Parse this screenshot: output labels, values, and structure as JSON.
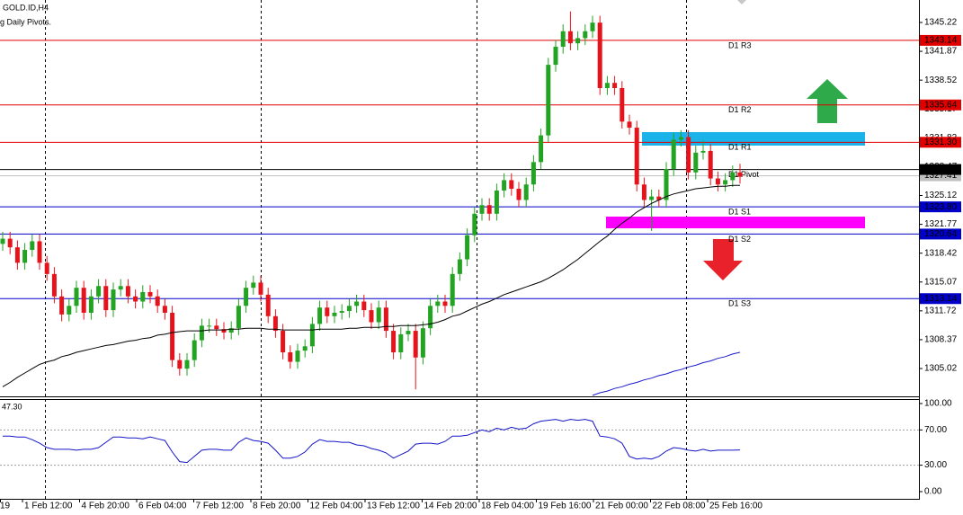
{
  "chart_data": [
    {
      "type": "candlestick",
      "title": "GOLD.ID,H4",
      "subtitle": "g Daily Pivots.",
      "open": [
        1319.5,
        1320.1,
        1319.1,
        1317.3,
        1318.8,
        1319.8,
        1317.3,
        1316.0,
        1313.4,
        1311.3,
        1312.3,
        1314.4,
        1311.5,
        1313.4,
        1314.6,
        1311.8,
        1314.2,
        1314.6,
        1313.4,
        1312.8,
        1313.9,
        1313.4,
        1312.3,
        1311.5,
        1306.0,
        1305.0,
        1306.0,
        1308.3,
        1310.0,
        1310.0,
        1309.6,
        1309.2,
        1309.7,
        1312.3,
        1314.4,
        1315.0,
        1313.6,
        1311.1,
        1309.4,
        1306.9,
        1305.8,
        1307.1,
        1307.6,
        1310.2,
        1312.1,
        1311.1,
        1311.5,
        1311.7,
        1312.3,
        1312.8,
        1311.8,
        1310.4,
        1312.1,
        1309.4,
        1306.9,
        1309.0,
        1309.4,
        1306.3,
        1309.7,
        1312.3,
        1312.8,
        1312.3,
        1316.0,
        1317.7,
        1320.5,
        1323.0,
        1324.0,
        1323.0,
        1325.7,
        1326.9,
        1325.9,
        1324.6,
        1326.4,
        1329.0,
        1332.1,
        1340.3,
        1342.4,
        1344.2,
        1342.8,
        1343.4,
        1344.2,
        1345.2,
        1337.6,
        1338.2,
        1337.6,
        1333.7,
        1333.0,
        1326.4,
        1324.6,
        1325.0,
        1324.6,
        1328.2,
        1331.6,
        1331.9,
        1327.8,
        1330.1,
        1330.3,
        1327.1,
        1326.4,
        1326.9,
        1327.8
      ],
      "high": [
        1320.9,
        1320.9,
        1319.9,
        1319.6,
        1320.6,
        1320.6,
        1318.1,
        1316.8,
        1314.2,
        1313.1,
        1315.2,
        1315.2,
        1314.2,
        1315.4,
        1315.4,
        1315.0,
        1315.4,
        1315.4,
        1314.2,
        1314.7,
        1314.7,
        1314.2,
        1313.1,
        1312.3,
        1306.8,
        1306.8,
        1309.1,
        1310.8,
        1310.8,
        1310.8,
        1310.4,
        1310.5,
        1313.1,
        1315.2,
        1315.8,
        1315.8,
        1314.4,
        1311.9,
        1310.2,
        1307.7,
        1307.9,
        1308.4,
        1311.0,
        1312.9,
        1312.9,
        1312.3,
        1312.5,
        1313.1,
        1313.6,
        1313.6,
        1312.6,
        1312.9,
        1312.9,
        1310.2,
        1309.8,
        1310.2,
        1310.2,
        1310.5,
        1313.1,
        1313.6,
        1313.6,
        1316.8,
        1318.5,
        1321.3,
        1323.8,
        1324.8,
        1324.8,
        1326.5,
        1327.7,
        1327.7,
        1326.7,
        1327.2,
        1329.8,
        1332.9,
        1341.1,
        1343.2,
        1345.0,
        1346.5,
        1344.2,
        1345.0,
        1346.0,
        1346.0,
        1339.0,
        1339.0,
        1338.4,
        1334.5,
        1333.8,
        1327.2,
        1325.8,
        1325.8,
        1329.0,
        1332.4,
        1332.7,
        1332.7,
        1330.9,
        1331.5,
        1331.1,
        1327.9,
        1327.7,
        1328.6,
        1328.8
      ],
      "low": [
        1318.7,
        1318.3,
        1316.5,
        1316.5,
        1318.0,
        1316.5,
        1315.2,
        1312.6,
        1310.5,
        1310.5,
        1311.5,
        1310.7,
        1310.7,
        1312.6,
        1311.0,
        1311.0,
        1313.4,
        1312.6,
        1312.0,
        1312.0,
        1312.6,
        1311.5,
        1310.7,
        1305.2,
        1304.2,
        1304.2,
        1305.2,
        1307.5,
        1309.2,
        1308.8,
        1308.4,
        1308.4,
        1308.9,
        1311.5,
        1313.6,
        1312.8,
        1310.3,
        1308.6,
        1306.1,
        1305.0,
        1305.0,
        1306.3,
        1306.8,
        1309.4,
        1310.3,
        1310.3,
        1310.7,
        1310.9,
        1311.5,
        1311.0,
        1309.6,
        1309.6,
        1308.6,
        1306.1,
        1306.1,
        1308.2,
        1302.6,
        1305.5,
        1308.9,
        1311.5,
        1311.5,
        1311.5,
        1315.2,
        1316.9,
        1319.7,
        1322.2,
        1322.2,
        1322.2,
        1324.9,
        1325.1,
        1323.8,
        1323.8,
        1325.6,
        1328.2,
        1331.3,
        1339.5,
        1341.6,
        1342.0,
        1342.0,
        1342.6,
        1343.4,
        1336.8,
        1336.8,
        1336.8,
        1332.9,
        1332.2,
        1325.6,
        1323.8,
        1321.0,
        1323.8,
        1323.8,
        1327.4,
        1330.8,
        1327.0,
        1327.0,
        1329.3,
        1326.3,
        1325.6,
        1325.6,
        1326.1,
        1326.5
      ],
      "close": [
        1320.1,
        1319.1,
        1317.3,
        1318.8,
        1319.8,
        1317.3,
        1316.0,
        1313.4,
        1311.3,
        1312.3,
        1314.4,
        1311.5,
        1313.4,
        1314.6,
        1311.8,
        1314.2,
        1314.6,
        1313.4,
        1312.8,
        1313.9,
        1313.4,
        1312.3,
        1311.5,
        1306.0,
        1305.0,
        1306.0,
        1308.3,
        1310.0,
        1310.0,
        1309.6,
        1309.2,
        1309.7,
        1312.3,
        1314.4,
        1315.0,
        1313.6,
        1311.1,
        1309.4,
        1306.9,
        1305.8,
        1307.1,
        1307.6,
        1310.2,
        1312.1,
        1311.1,
        1311.5,
        1311.7,
        1312.3,
        1312.8,
        1311.8,
        1310.4,
        1312.1,
        1309.4,
        1306.9,
        1309.0,
        1309.4,
        1306.3,
        1309.7,
        1312.3,
        1312.8,
        1312.3,
        1316.0,
        1317.7,
        1320.5,
        1323.0,
        1324.0,
        1323.0,
        1325.7,
        1326.9,
        1325.9,
        1324.6,
        1326.4,
        1329.0,
        1332.1,
        1340.3,
        1342.4,
        1344.2,
        1342.8,
        1343.4,
        1344.2,
        1345.2,
        1337.6,
        1338.2,
        1337.6,
        1333.7,
        1333.0,
        1326.4,
        1324.6,
        1325.0,
        1324.6,
        1328.2,
        1331.6,
        1331.9,
        1327.8,
        1330.1,
        1330.3,
        1327.1,
        1326.4,
        1326.9,
        1327.8,
        1327.3
      ],
      "up_color": "#22a322",
      "down_color": "#e5141c",
      "lines": [
        {
          "color": "#000000",
          "values": [
            1302.9,
            1303.4,
            1304.0,
            1304.5,
            1305.0,
            1305.5,
            1305.8,
            1306.0,
            1306.4,
            1306.6,
            1306.9,
            1307.1,
            1307.3,
            1307.5,
            1307.7,
            1307.8,
            1308.0,
            1308.2,
            1308.3,
            1308.5,
            1308.6,
            1308.9,
            1309.0,
            1309.2,
            1309.3,
            1309.4,
            1309.4,
            1309.4,
            1309.5,
            1309.5,
            1309.5,
            1309.6,
            1309.6,
            1309.7,
            1309.7,
            1309.7,
            1309.6,
            1309.6,
            1309.5,
            1309.5,
            1309.5,
            1309.5,
            1309.5,
            1309.6,
            1309.6,
            1309.6,
            1309.6,
            1309.7,
            1309.7,
            1309.8,
            1309.8,
            1309.8,
            1309.9,
            1309.9,
            1310.0,
            1310.0,
            1310.0,
            1310.1,
            1310.2,
            1310.4,
            1310.7,
            1311.1,
            1311.3,
            1311.7,
            1312.1,
            1312.5,
            1312.8,
            1313.2,
            1313.6,
            1313.9,
            1314.2,
            1314.5,
            1314.8,
            1315.1,
            1315.5,
            1316.0,
            1316.5,
            1317.1,
            1317.7,
            1318.4,
            1319.1,
            1319.8,
            1320.4,
            1321.2,
            1321.9,
            1322.5,
            1323.2,
            1323.7,
            1324.2,
            1324.6,
            1325.0,
            1325.3,
            1325.5,
            1325.7,
            1325.9,
            1326.0,
            1326.1,
            1326.2,
            1326.2,
            1326.3,
            1326.3
          ]
        },
        {
          "color": "#1a1acc",
          "values": [
            null,
            null,
            null,
            null,
            null,
            null,
            null,
            null,
            null,
            null,
            null,
            null,
            null,
            null,
            null,
            null,
            null,
            null,
            null,
            null,
            null,
            null,
            null,
            null,
            null,
            null,
            null,
            null,
            null,
            null,
            null,
            null,
            null,
            null,
            null,
            null,
            null,
            null,
            null,
            null,
            null,
            null,
            null,
            null,
            null,
            null,
            null,
            null,
            null,
            null,
            null,
            null,
            null,
            null,
            null,
            null,
            null,
            null,
            null,
            null,
            null,
            null,
            null,
            null,
            null,
            null,
            null,
            null,
            null,
            null,
            null,
            null,
            null,
            null,
            null,
            null,
            null,
            null,
            null,
            null,
            1301.9,
            1302.2,
            1302.4,
            1302.7,
            1302.9,
            1303.2,
            1303.4,
            1303.7,
            1303.9,
            1304.2,
            1304.4,
            1304.7,
            1304.9,
            1305.2,
            1305.4,
            1305.7,
            1305.9,
            1306.2,
            1306.4,
            1306.7,
            1306.9
          ]
        }
      ],
      "levels": [
        {
          "name": "D1 R3",
          "value": 1343.14,
          "color": "#e00000"
        },
        {
          "name": "D1 R2",
          "value": 1335.64,
          "color": "#e00000"
        },
        {
          "name": "D1 R1",
          "value": 1331.3,
          "label": "1331.30",
          "color": "#e00000"
        },
        {
          "name": "D1 Pivot",
          "value": 1328.14,
          "color": "#000000"
        },
        {
          "name": "D1 S1",
          "value": 1323.8,
          "label": "1323.80",
          "color": "#0000c8"
        },
        {
          "name": "D1 S2",
          "value": 1320.64,
          "color": "#0000c8"
        },
        {
          "name": "D1 S3",
          "value": 1313.14,
          "color": "#0000c8"
        }
      ],
      "bid": {
        "value": 1327.41,
        "color": "#c0c0c0"
      },
      "ylim": [
        1301.89,
        1347.83
      ],
      "yticks": [
        1345.22,
        1341.87,
        1338.52,
        1335.17,
        1331.82,
        1328.47,
        1325.12,
        1321.77,
        1318.42,
        1315.07,
        1311.72,
        1308.37,
        1305.02
      ],
      "x_labels": [
        "19",
        "1 Feb 12:00",
        "4 Feb 20:00",
        "6 Feb 04:00",
        "7 Feb 12:00",
        "8 Feb 20:00",
        "12 Feb 04:00",
        "13 Feb 12:00",
        "14 Feb 20:00",
        "18 Feb 04:00",
        "19 Feb 16:00",
        "21 Feb 00:00",
        "22 Feb 08:00",
        "25 Feb 16:00"
      ]
    },
    {
      "type": "line",
      "color": "#1414c8",
      "values": [
        63,
        63,
        62,
        62,
        59,
        55,
        50,
        48,
        48,
        48,
        47,
        48,
        48,
        50,
        56,
        62,
        62,
        61,
        61,
        60,
        62,
        60,
        58,
        45,
        34,
        33,
        40,
        47,
        48,
        48,
        47,
        47,
        56,
        61,
        58,
        57,
        55,
        47,
        38,
        38,
        40,
        45,
        54,
        59,
        57,
        57,
        56,
        56,
        53,
        52,
        49,
        47,
        44,
        38,
        42,
        46,
        54,
        55,
        55,
        54,
        57,
        63,
        63,
        64,
        67,
        70,
        68,
        72,
        70,
        73,
        71,
        72,
        77,
        80,
        81,
        82,
        80,
        82,
        81,
        82,
        80,
        63,
        62,
        60,
        55,
        40,
        37,
        38,
        37,
        40,
        46,
        50,
        49,
        47,
        46,
        48,
        46,
        47,
        47,
        47,
        47.3
      ],
      "current": {
        "value": 47.3,
        "label": "47.30"
      },
      "levels": [
        70,
        30
      ],
      "ylim": [
        -8.2,
        106.1
      ],
      "yticks": [
        {
          "value": 100,
          "label": "100.00"
        },
        {
          "value": 70,
          "label": "70.00"
        },
        {
          "value": 30,
          "label": "30.00"
        },
        {
          "value": 0,
          "label": "0.00"
        }
      ]
    }
  ]
}
